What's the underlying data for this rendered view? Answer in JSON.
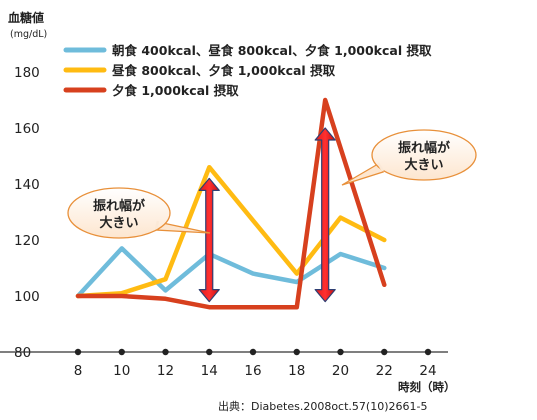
{
  "chart_data": {
    "type": "line",
    "ylabel": "血糖値",
    "yunit": "(mg/dL)",
    "xlabel": "時刻（時）",
    "ylim": [
      80,
      180
    ],
    "xlim": [
      8,
      24
    ],
    "yticks": [
      80,
      100,
      120,
      140,
      160,
      180
    ],
    "xticks": [
      8,
      10,
      12,
      14,
      16,
      18,
      20,
      22,
      24
    ],
    "series": [
      {
        "name": "朝食 400kcal、昼食 800kcal、夕食 1,000kcal 摂取",
        "color": "#6fbcdb",
        "x": [
          8,
          10,
          12,
          14,
          16,
          18,
          20,
          22
        ],
        "y": [
          100,
          117,
          102,
          115,
          108,
          105,
          115,
          110
        ]
      },
      {
        "name": "昼食 800kcal、夕食 1,000kcal 摂取",
        "color": "#ffbb12",
        "x": [
          8,
          10,
          12,
          14,
          16,
          18,
          20,
          22
        ],
        "y": [
          100,
          101,
          106,
          146,
          127,
          108,
          128,
          120
        ]
      },
      {
        "name": "夕食 1,000kcal 摂取",
        "color": "#d7401e",
        "x": [
          8,
          10,
          12,
          14,
          16,
          18,
          19.3,
          22
        ],
        "y": [
          100,
          100,
          99,
          96,
          96,
          96,
          170,
          104
        ]
      }
    ],
    "annotations": [
      {
        "text": [
          "振れ幅が",
          "大きい"
        ],
        "arrow_x": 14,
        "arrow_y": [
          98,
          142
        ]
      },
      {
        "text": [
          "振れ幅が",
          "大きい"
        ],
        "arrow_x": 19.3,
        "arrow_y": [
          98,
          160
        ]
      }
    ],
    "source": "出典：Diabetes.2008oct.57(10)2661-5"
  }
}
